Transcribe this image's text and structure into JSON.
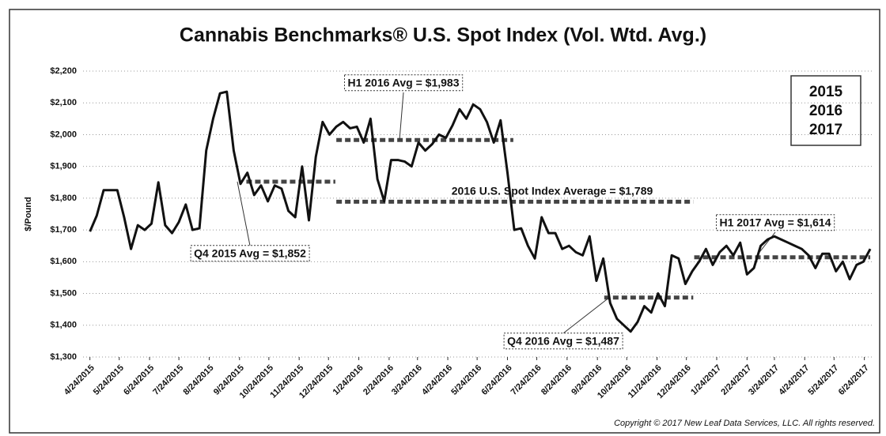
{
  "chart_data": {
    "type": "line",
    "title": "Cannabis Benchmarks® U.S. Spot Index (Vol. Wtd. Avg.)",
    "y_label": "$/Pound",
    "copyright": "Copyright © 2017 New Leaf Data Services, LLC. All rights reserved.",
    "legend": [
      "2015",
      "2016",
      "2017"
    ],
    "color": "#111111",
    "grid": true,
    "xlim": [
      "2015-04-17",
      "2017-07-04"
    ],
    "ylim": [
      1300,
      2200
    ],
    "yticks": [
      {
        "value": 1300,
        "label": "$1,300"
      },
      {
        "value": 1400,
        "label": "$1,400"
      },
      {
        "value": 1500,
        "label": "$1,500"
      },
      {
        "value": 1600,
        "label": "$1,600"
      },
      {
        "value": 1700,
        "label": "$1,700"
      },
      {
        "value": 1800,
        "label": "$1,800"
      },
      {
        "value": 1900,
        "label": "$1,900"
      },
      {
        "value": 2000,
        "label": "$2,000"
      },
      {
        "value": 2100,
        "label": "$2,100"
      },
      {
        "value": 2200,
        "label": "$2,200"
      }
    ],
    "xticks": [
      {
        "value": "2015-04-24",
        "label": "4/24/2015"
      },
      {
        "value": "2015-05-24",
        "label": "5/24/2015"
      },
      {
        "value": "2015-06-24",
        "label": "6/24/2015"
      },
      {
        "value": "2015-07-24",
        "label": "7/24/2015"
      },
      {
        "value": "2015-08-24",
        "label": "8/24/2015"
      },
      {
        "value": "2015-09-24",
        "label": "9/24/2015"
      },
      {
        "value": "2015-10-24",
        "label": "10/24/2015"
      },
      {
        "value": "2015-11-24",
        "label": "11/24/2015"
      },
      {
        "value": "2015-12-24",
        "label": "12/24/2015"
      },
      {
        "value": "2016-01-24",
        "label": "1/24/2016"
      },
      {
        "value": "2016-02-24",
        "label": "2/24/2016"
      },
      {
        "value": "2016-03-24",
        "label": "3/24/2016"
      },
      {
        "value": "2016-04-24",
        "label": "4/24/2016"
      },
      {
        "value": "2016-05-24",
        "label": "5/24/2016"
      },
      {
        "value": "2016-06-24",
        "label": "6/24/2016"
      },
      {
        "value": "2016-07-24",
        "label": "7/24/2016"
      },
      {
        "value": "2016-08-24",
        "label": "8/24/2016"
      },
      {
        "value": "2016-09-24",
        "label": "9/24/2016"
      },
      {
        "value": "2016-10-24",
        "label": "10/24/2016"
      },
      {
        "value": "2016-11-24",
        "label": "11/24/2016"
      },
      {
        "value": "2016-12-24",
        "label": "12/24/2016"
      },
      {
        "value": "2017-01-24",
        "label": "1/24/2017"
      },
      {
        "value": "2017-02-24",
        "label": "2/24/2017"
      },
      {
        "value": "2017-03-24",
        "label": "3/24/2017"
      },
      {
        "value": "2017-04-24",
        "label": "4/24/2017"
      },
      {
        "value": "2017-05-24",
        "label": "5/24/2017"
      },
      {
        "value": "2017-06-24",
        "label": "6/24/2017"
      }
    ],
    "x": [
      "2015-04-24",
      "2015-05-01",
      "2015-05-08",
      "2015-05-15",
      "2015-05-22",
      "2015-05-29",
      "2015-06-05",
      "2015-06-12",
      "2015-06-19",
      "2015-06-26",
      "2015-07-03",
      "2015-07-10",
      "2015-07-17",
      "2015-07-24",
      "2015-07-31",
      "2015-08-07",
      "2015-08-14",
      "2015-08-21",
      "2015-08-28",
      "2015-09-04",
      "2015-09-11",
      "2015-09-18",
      "2015-09-25",
      "2015-10-02",
      "2015-10-09",
      "2015-10-16",
      "2015-10-23",
      "2015-10-30",
      "2015-11-06",
      "2015-11-13",
      "2015-11-20",
      "2015-11-27",
      "2015-12-04",
      "2015-12-11",
      "2015-12-18",
      "2015-12-25",
      "2016-01-01",
      "2016-01-08",
      "2016-01-15",
      "2016-01-22",
      "2016-01-29",
      "2016-02-05",
      "2016-02-12",
      "2016-02-19",
      "2016-02-26",
      "2016-03-04",
      "2016-03-11",
      "2016-03-18",
      "2016-03-25",
      "2016-04-01",
      "2016-04-08",
      "2016-04-15",
      "2016-04-22",
      "2016-04-29",
      "2016-05-06",
      "2016-05-13",
      "2016-05-20",
      "2016-05-27",
      "2016-06-03",
      "2016-06-10",
      "2016-06-17",
      "2016-06-24",
      "2016-07-01",
      "2016-07-08",
      "2016-07-15",
      "2016-07-22",
      "2016-07-29",
      "2016-08-05",
      "2016-08-12",
      "2016-08-19",
      "2016-08-26",
      "2016-09-02",
      "2016-09-09",
      "2016-09-16",
      "2016-09-23",
      "2016-09-30",
      "2016-10-07",
      "2016-10-14",
      "2016-10-21",
      "2016-10-28",
      "2016-11-04",
      "2016-11-11",
      "2016-11-18",
      "2016-11-25",
      "2016-12-02",
      "2016-12-09",
      "2016-12-16",
      "2016-12-23",
      "2016-12-30",
      "2017-01-06",
      "2017-01-13",
      "2017-01-20",
      "2017-01-27",
      "2017-02-03",
      "2017-02-10",
      "2017-02-17",
      "2017-02-24",
      "2017-03-03",
      "2017-03-10",
      "2017-03-17",
      "2017-03-24",
      "2017-03-31",
      "2017-04-07",
      "2017-04-14",
      "2017-04-21",
      "2017-04-28",
      "2017-05-05",
      "2017-05-12",
      "2017-05-19",
      "2017-05-26",
      "2017-06-02",
      "2017-06-09",
      "2017-06-16",
      "2017-06-23",
      "2017-06-30"
    ],
    "values": [
      1695,
      1745,
      1825,
      1825,
      1825,
      1740,
      1640,
      1715,
      1700,
      1720,
      1850,
      1715,
      1690,
      1725,
      1780,
      1700,
      1705,
      1950,
      2050,
      2130,
      2135,
      1950,
      1845,
      1880,
      1810,
      1840,
      1790,
      1840,
      1830,
      1760,
      1740,
      1900,
      1730,
      1930,
      2040,
      2000,
      2025,
      2040,
      2020,
      2025,
      1975,
      2050,
      1860,
      1790,
      1920,
      1920,
      1915,
      1900,
      1975,
      1950,
      1970,
      2000,
      1990,
      2030,
      2080,
      2050,
      2095,
      2080,
      2040,
      1975,
      2045,
      1880,
      1700,
      1705,
      1650,
      1610,
      1740,
      1690,
      1690,
      1640,
      1650,
      1630,
      1620,
      1680,
      1540,
      1610,
      1470,
      1420,
      1400,
      1380,
      1410,
      1460,
      1440,
      1500,
      1460,
      1620,
      1610,
      1530,
      1570,
      1600,
      1640,
      1590,
      1630,
      1650,
      1620,
      1660,
      1560,
      1580,
      1650,
      1670,
      1680,
      1670,
      1660,
      1650,
      1640,
      1620,
      1580,
      1625,
      1625,
      1570,
      1600,
      1545,
      1590,
      1600,
      1640
    ],
    "reference_lines": [
      {
        "label": "Q4 2015 Avg = $1,852",
        "value": 1852,
        "start": "2015-10-01",
        "end": "2015-12-31"
      },
      {
        "label": "H1 2016 Avg = $1,983",
        "value": 1983,
        "start": "2016-01-01",
        "end": "2016-06-30"
      },
      {
        "label": "2016 U.S. Spot Index Average = $1,789",
        "value": 1789,
        "start": "2016-01-01",
        "end": "2016-12-31"
      },
      {
        "label": "Q4 2016 Avg = $1,487",
        "value": 1487,
        "start": "2016-10-01",
        "end": "2016-12-31"
      },
      {
        "label": "H1 2017 Avg = $1,614",
        "value": 1614,
        "start": "2017-01-01",
        "end": "2017-06-30"
      }
    ]
  }
}
